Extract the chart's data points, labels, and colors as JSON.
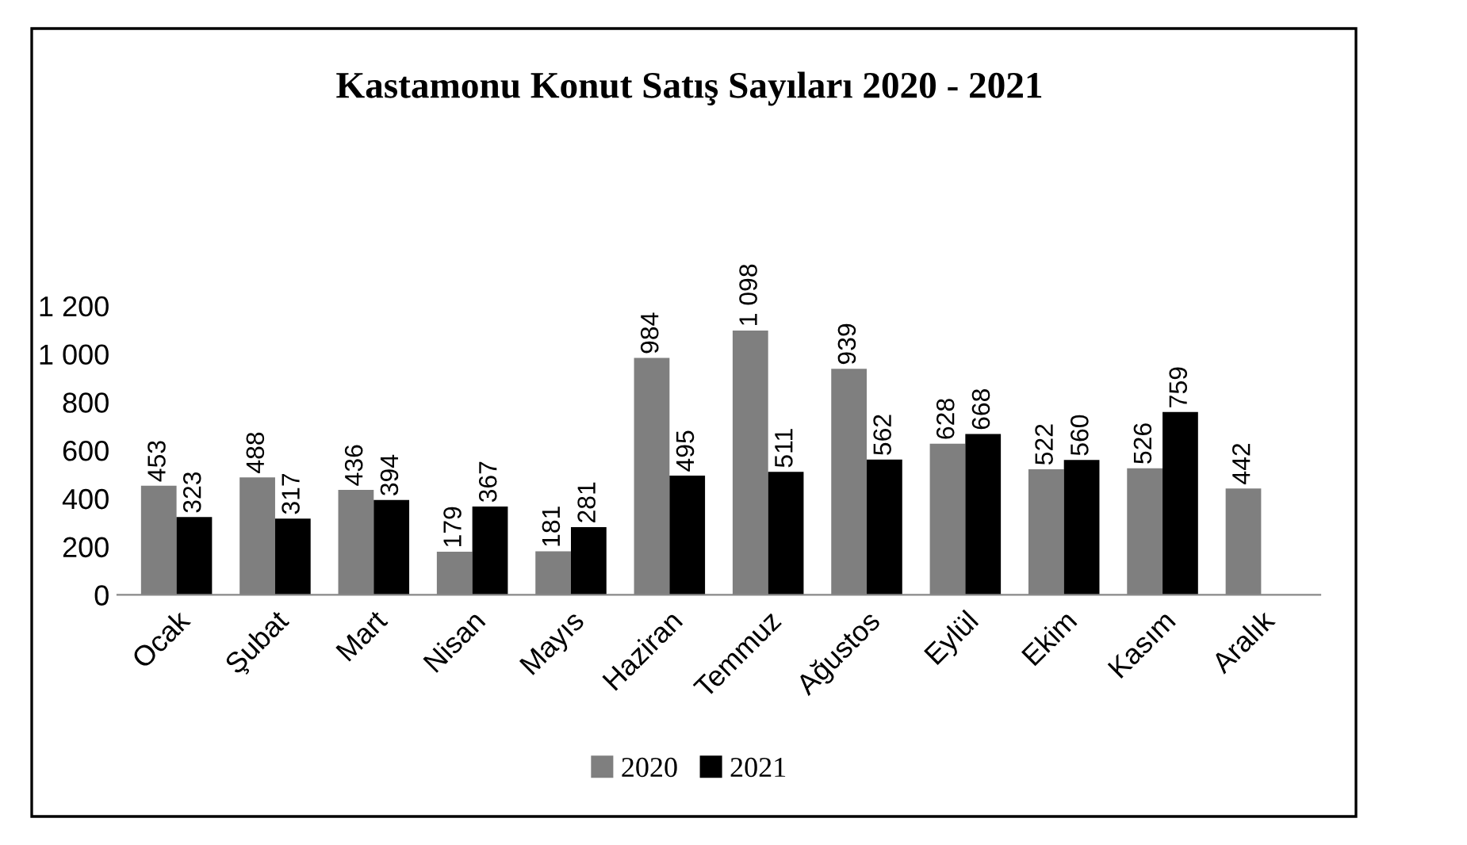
{
  "chart_data": {
    "type": "bar",
    "title": "Kastamonu Konut Satış Sayıları 2020 - 2021",
    "categories": [
      "Ocak",
      "Şubat",
      "Mart",
      "Nisan",
      "Mayıs",
      "Haziran",
      "Temmuz",
      "Ağustos",
      "Eylül",
      "Ekim",
      "Kasım",
      "Aralık"
    ],
    "series": [
      {
        "name": "2020",
        "color": "#7f7f7f",
        "values": [
          453,
          488,
          436,
          179,
          181,
          984,
          1098,
          939,
          628,
          522,
          526,
          442
        ],
        "value_labels": [
          "453",
          "488",
          "436",
          "179",
          "181",
          "984",
          "1 098",
          "939",
          "628",
          "522",
          "526",
          "442"
        ]
      },
      {
        "name": "2021",
        "color": "#000000",
        "values": [
          323,
          317,
          394,
          367,
          281,
          495,
          511,
          562,
          668,
          560,
          759,
          null
        ],
        "value_labels": [
          "323",
          "317",
          "394",
          "367",
          "281",
          "495",
          "511",
          "562",
          "668",
          "560",
          "759",
          null
        ]
      }
    ],
    "ylim": [
      0,
      1200
    ],
    "yticks": [
      0,
      200,
      400,
      600,
      800,
      {
        "value": 1000,
        "label": "1 000"
      },
      {
        "value": 1200,
        "label": "1 200"
      }
    ],
    "grid": false,
    "legend": "bottom"
  }
}
